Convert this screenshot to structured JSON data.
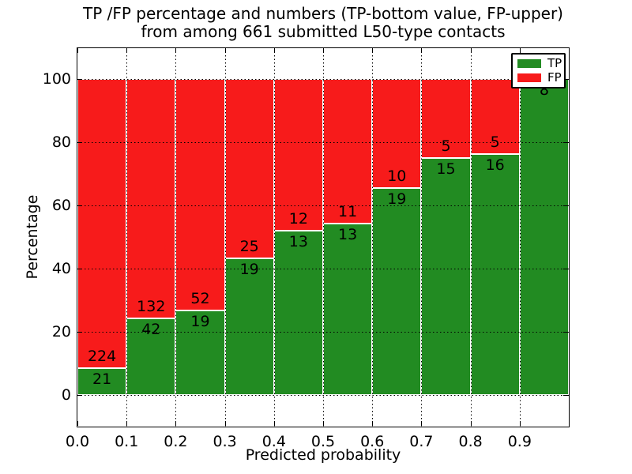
{
  "figure": {
    "title_line1": "TP /FP percentage and numbers (TP-bottom value, FP-upper)",
    "title_line2": "from among 661 submitted L50-type contacts",
    "xlabel": "Predicted probability",
    "ylabel": "Percentage"
  },
  "legend": {
    "entries": [
      {
        "label": "TP",
        "color": "#228b22"
      },
      {
        "label": "FP",
        "color": "#f71b1b"
      }
    ]
  },
  "chart_data": {
    "type": "bar",
    "stacked": true,
    "normalized": "each bar totals 100%",
    "title": "TP /FP percentage and numbers (TP-bottom value, FP-upper) from among 661 submitted L50-type contacts",
    "xlabel": "Predicted probability",
    "ylabel": "Percentage",
    "total_contacts": 661,
    "categories": [
      "0.0-0.1",
      "0.1-0.2",
      "0.2-0.3",
      "0.3-0.4",
      "0.4-0.5",
      "0.5-0.6",
      "0.6-0.7",
      "0.7-0.8",
      "0.8-0.9",
      "0.9-1.0"
    ],
    "series": [
      {
        "name": "TP",
        "color": "#228b22",
        "counts": [
          21,
          42,
          19,
          19,
          13,
          13,
          19,
          15,
          16,
          8
        ]
      },
      {
        "name": "FP",
        "color": "#f71b1b",
        "counts": [
          224,
          132,
          52,
          25,
          12,
          11,
          10,
          5,
          5,
          0
        ]
      }
    ],
    "tp_percent": [
      8.6,
      24.1,
      26.8,
      43.2,
      52.0,
      54.2,
      65.5,
      75.0,
      76.2,
      100.0
    ],
    "xticks": [
      "0.0",
      "0.1",
      "0.2",
      "0.3",
      "0.4",
      "0.5",
      "0.6",
      "0.7",
      "0.8",
      "0.9"
    ],
    "yticks": [
      "0",
      "20",
      "40",
      "60",
      "80",
      "100"
    ],
    "xlim": [
      0.0,
      1.0
    ],
    "ylim": [
      -10,
      110
    ],
    "grid": true,
    "grid_style": "dotted",
    "legend_position": "upper right"
  }
}
